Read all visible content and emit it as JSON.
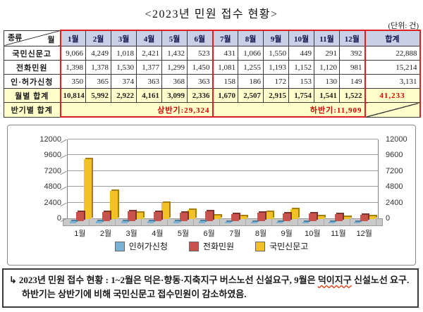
{
  "title": "<2023년 민원 접수 현황>",
  "unit_label": "(단위: 건)",
  "table": {
    "corner": {
      "top_label": "종류",
      "right_label": "월"
    },
    "month_headers": [
      "1월",
      "2월",
      "3월",
      "4월",
      "5월",
      "6월",
      "7월",
      "8월",
      "9월",
      "10월",
      "11월",
      "12월"
    ],
    "total_header": "합계",
    "rows": [
      {
        "label": "국민신문고",
        "values": [
          "9,066",
          "4,249",
          "1,018",
          "2,421",
          "1,432",
          "523",
          "431",
          "1,066",
          "1,550",
          "449",
          "291",
          "392"
        ],
        "total": "22,888"
      },
      {
        "label": "전화민원",
        "values": [
          "1,398",
          "1,378",
          "1,530",
          "1,377",
          "1,299",
          "1,450",
          "1,081",
          "1,255",
          "1,193",
          "1,152",
          "1,120",
          "981"
        ],
        "total": "15,214"
      },
      {
        "label": "인·허가신청",
        "values": [
          "350",
          "365",
          "374",
          "363",
          "368",
          "363",
          "158",
          "186",
          "172",
          "153",
          "130",
          "149"
        ],
        "total": "3,131"
      }
    ],
    "monthly_total": {
      "label": "월별 합계",
      "values": [
        "10,814",
        "5,992",
        "2,922",
        "4,161",
        "3,099",
        "2,336",
        "1,670",
        "2,507",
        "2,915",
        "1,754",
        "1,541",
        "1,522"
      ],
      "grand_total": "41,233"
    },
    "half_year": {
      "label": "반기별 합계",
      "first_half": "상반기:29,324",
      "second_half": "하반기:11,909"
    }
  },
  "chart_data": {
    "type": "bar",
    "categories": [
      "1월",
      "2월",
      "3월",
      "4월",
      "5월",
      "6월",
      "7월",
      "8월",
      "9월",
      "10월",
      "11월",
      "12월"
    ],
    "series": [
      {
        "name": "인허가신청",
        "color": "#7ab2d6",
        "shadow": "#4e7f9e",
        "values": [
          350,
          365,
          374,
          363,
          368,
          363,
          158,
          186,
          172,
          153,
          130,
          149
        ]
      },
      {
        "name": "전화민원",
        "color": "#c8524c",
        "shadow": "#7e332f",
        "values": [
          1398,
          1378,
          1530,
          1377,
          1299,
          1450,
          1081,
          1255,
          1193,
          1152,
          1120,
          981
        ]
      },
      {
        "name": "국민신문고",
        "color": "#f2c125",
        "shadow": "#a57f10",
        "values": [
          9066,
          4249,
          1018,
          2421,
          1432,
          523,
          431,
          1066,
          1550,
          449,
          291,
          392
        ]
      }
    ],
    "title": "",
    "xlabel": "",
    "ylabel": "",
    "ylim": [
      0,
      12000
    ],
    "yticks": [
      0,
      2400,
      4800,
      7200,
      9600,
      12000
    ],
    "grid": true,
    "legend_position": "bottom",
    "secondary_axis": true
  },
  "caption": {
    "arrow": "↳",
    "part1": "2023년 민원 접수 현황 : 1~2월은 덕은·향동·지축지구 버스노선 신설요구, 9월은 ",
    "underlined": "덕이지구",
    "part2": " 신설노선 요구. 하반기는 상반기에 비해 국민신문고 접수민원이 감소하였음."
  },
  "colors": {
    "header_bg": "#c8cfe6",
    "header_text": "#14144d",
    "highlight_bg": "#ffffcc",
    "red_border": "#e02020",
    "red_text": "#d40000"
  }
}
